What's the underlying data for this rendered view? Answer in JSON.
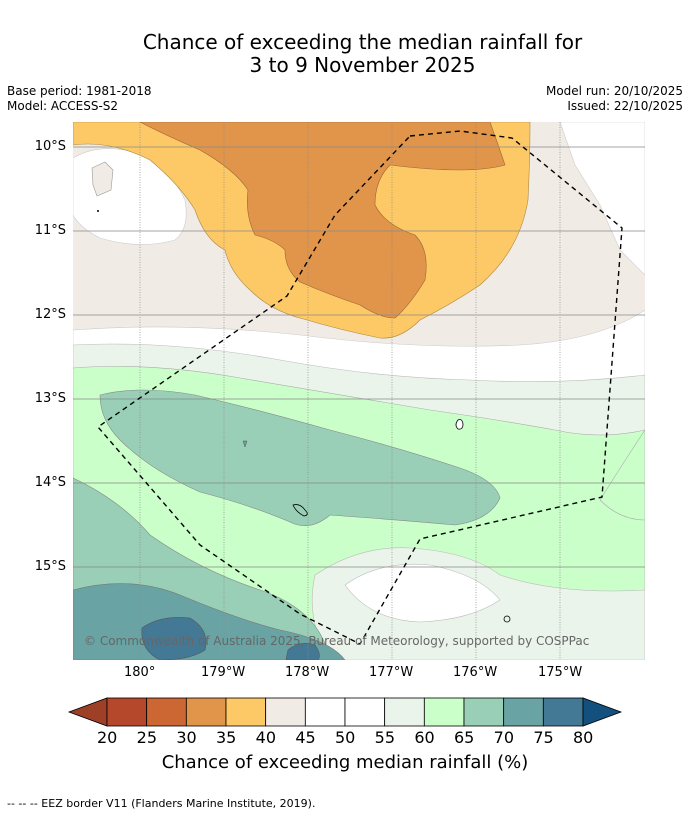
{
  "title": {
    "line1": "Chance of exceeding the median rainfall for",
    "line2": "3 to 9 November 2025"
  },
  "meta": {
    "base_period": "Base period: 1981-2018",
    "model": "Model: ACCESS-S2",
    "model_run": "Model run: 20/10/2025",
    "issued": "Issued: 22/10/2025"
  },
  "map": {
    "lat_labels": [
      "10°S",
      "11°S",
      "12°S",
      "13°S",
      "14°S",
      "15°S"
    ],
    "lon_labels": [
      "180°",
      "179°W",
      "178°W",
      "177°W",
      "176°W",
      "175°W"
    ],
    "copyright": "© Commonwealth of Australia 2025, Bureau of Meteorology, supported by COSPPac"
  },
  "colorbar": {
    "ticks": [
      "20",
      "25",
      "30",
      "35",
      "40",
      "45",
      "50",
      "55",
      "60",
      "65",
      "70",
      "75",
      "80"
    ],
    "colors": [
      "#b5472a",
      "#cc6633",
      "#e0954a",
      "#fdc966",
      "#f1ebe6",
      "#ffffff",
      "#ffffff",
      "#ebf4ea",
      "#caffca",
      "#99cfb6",
      "#6aa3a3",
      "#447996"
    ],
    "under_color": "#9e3f28",
    "over_color": "#14507e",
    "title": "Chance of exceeding median rainfall (%)"
  },
  "footnote": "--  --  -- EEZ border V11 (Flanders Marine Institute, 2019)."
}
